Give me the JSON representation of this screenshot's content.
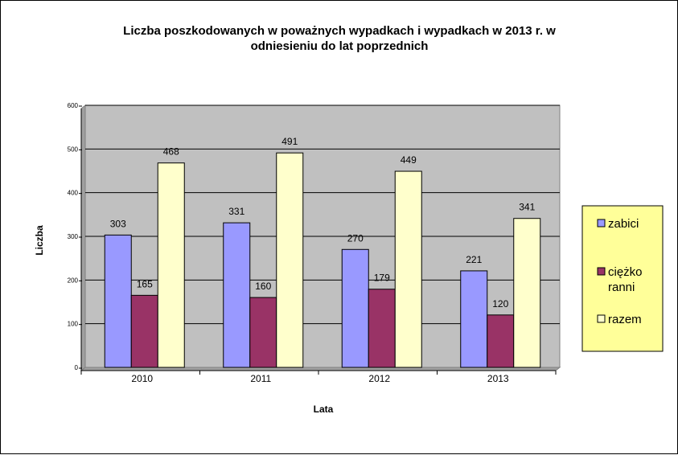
{
  "chart_data": {
    "type": "bar",
    "title_lines": [
      "Liczba poszkodowanych  w poważnych wypadkach  i wypadkach  w 2013  r. w",
      "odniesieniu  do lat  poprzednich"
    ],
    "xlabel": "Lata",
    "ylabel": "Liczba",
    "ylim": [
      0,
      600
    ],
    "yticks": [
      "0",
      "100",
      "200",
      "300",
      "400",
      "500",
      "600"
    ],
    "categories": [
      "2010",
      "2011",
      "2012",
      "2013"
    ],
    "series": [
      {
        "name": "zabici",
        "legend_lines": [
          "zabici"
        ],
        "color": "#9999FF",
        "values": [
          303,
          331,
          270,
          221
        ]
      },
      {
        "name": "ciężko ranni",
        "legend_lines": [
          "ciężko",
          "ranni"
        ],
        "color": "#993366",
        "values": [
          165,
          160,
          179,
          120
        ]
      },
      {
        "name": "razem",
        "legend_lines": [
          "razem"
        ],
        "color": "#FFFFCC",
        "values": [
          468,
          491,
          449,
          341
        ]
      }
    ],
    "grid": true,
    "plot_background": "#C0C0C0",
    "legend_background": "#FFFF99",
    "legend_position": "right"
  }
}
